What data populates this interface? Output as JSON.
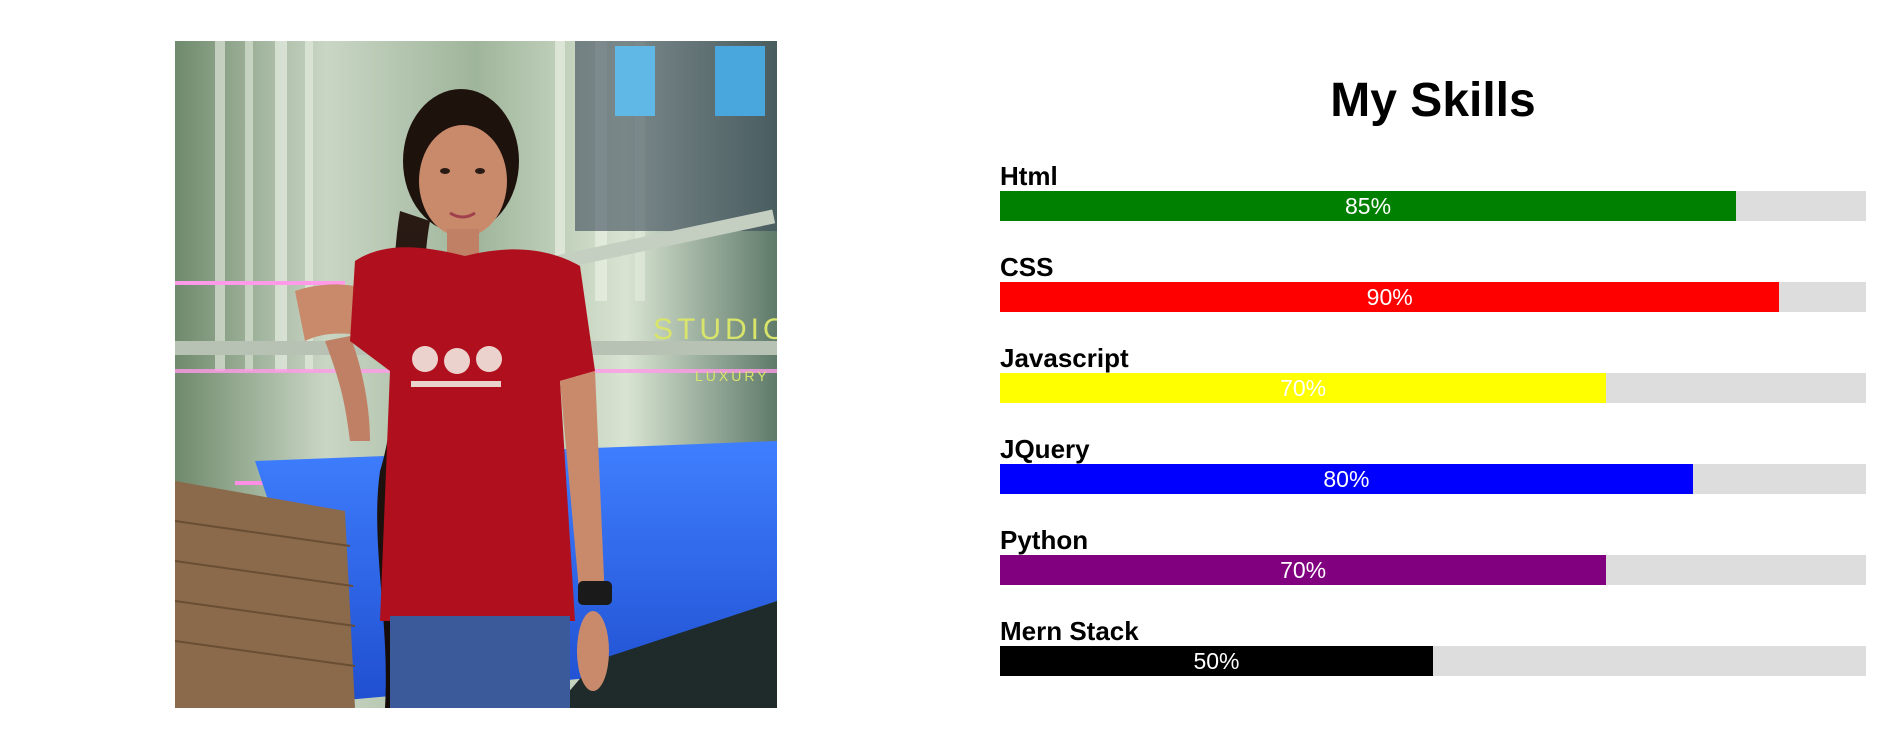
{
  "heading": "My Skills",
  "photo": {
    "alt": "Profile photo",
    "sign_text": "STUDIO",
    "sign_subtext": "LUXURY"
  },
  "skills": [
    {
      "name": "Html",
      "percent": 85,
      "label": "85%",
      "color": "#008000"
    },
    {
      "name": "CSS",
      "percent": 90,
      "label": "90%",
      "color": "#ff0000"
    },
    {
      "name": "Javascript",
      "percent": 70,
      "label": "70%",
      "color": "#ffff00"
    },
    {
      "name": "JQuery",
      "percent": 80,
      "label": "80%",
      "color": "#0000ff"
    },
    {
      "name": "Python",
      "percent": 70,
      "label": "70%",
      "color": "#800080"
    },
    {
      "name": "Mern Stack",
      "percent": 50,
      "label": "50%",
      "color": "#000000"
    }
  ],
  "bar_track_color": "#dddddd"
}
